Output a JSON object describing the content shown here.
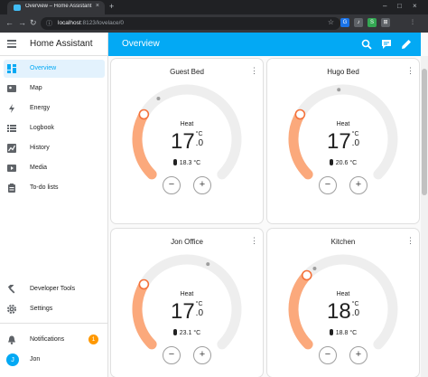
{
  "browser": {
    "tab_title": "Overview – Home Assistant",
    "tab_close": "×",
    "new_tab": "+",
    "url_host": "localhost",
    "url_rest": ":8123/lovelace/0",
    "window_controls": [
      "–",
      "□",
      "×"
    ],
    "ext_labels": [
      "G",
      "♪",
      "S",
      "⊞",
      "⋮"
    ]
  },
  "sidebar": {
    "title": "Home Assistant",
    "items": [
      {
        "label": "Overview",
        "icon": "dashboard-icon",
        "active": true
      },
      {
        "label": "Map",
        "icon": "map-icon"
      },
      {
        "label": "Energy",
        "icon": "lightning-icon"
      },
      {
        "label": "Logbook",
        "icon": "list-icon"
      },
      {
        "label": "History",
        "icon": "chart-icon"
      },
      {
        "label": "Media",
        "icon": "media-icon"
      },
      {
        "label": "To-do lists",
        "icon": "clipboard-icon"
      }
    ],
    "bottom": [
      {
        "label": "Developer Tools",
        "icon": "hammer-icon"
      },
      {
        "label": "Settings",
        "icon": "gear-icon"
      }
    ],
    "notifications": {
      "label": "Notifications",
      "count": "1",
      "icon": "bell-icon"
    },
    "user": {
      "name": "Jon",
      "initial": "J"
    }
  },
  "header": {
    "title": "Overview",
    "icons": [
      "search-icon",
      "chat-icon",
      "pencil-icon"
    ]
  },
  "cards": [
    {
      "name": "Guest Bed",
      "mode": "Heat",
      "target_int": "17",
      "target_dec": ".0",
      "unit": "°C",
      "current": "18.3 °C"
    },
    {
      "name": "Hugo Bed",
      "mode": "Heat",
      "target_int": "17",
      "target_dec": ".0",
      "unit": "°C",
      "current": "20.6 °C"
    },
    {
      "name": "Jon Office",
      "mode": "Heat",
      "target_int": "17",
      "target_dec": ".0",
      "unit": "°C",
      "current": "23.1 °C"
    },
    {
      "name": "Kitchen",
      "mode": "Heat",
      "target_int": "18",
      "target_dec": ".0",
      "unit": "°C",
      "current": "18.8 °C"
    }
  ],
  "controls": {
    "minus": "−",
    "plus": "+"
  },
  "colors": {
    "primary": "#03a9f4",
    "heat": "#fba97c",
    "heat_handle": "#f4713a",
    "track": "#eeeeee",
    "badge": "#ff9800"
  }
}
